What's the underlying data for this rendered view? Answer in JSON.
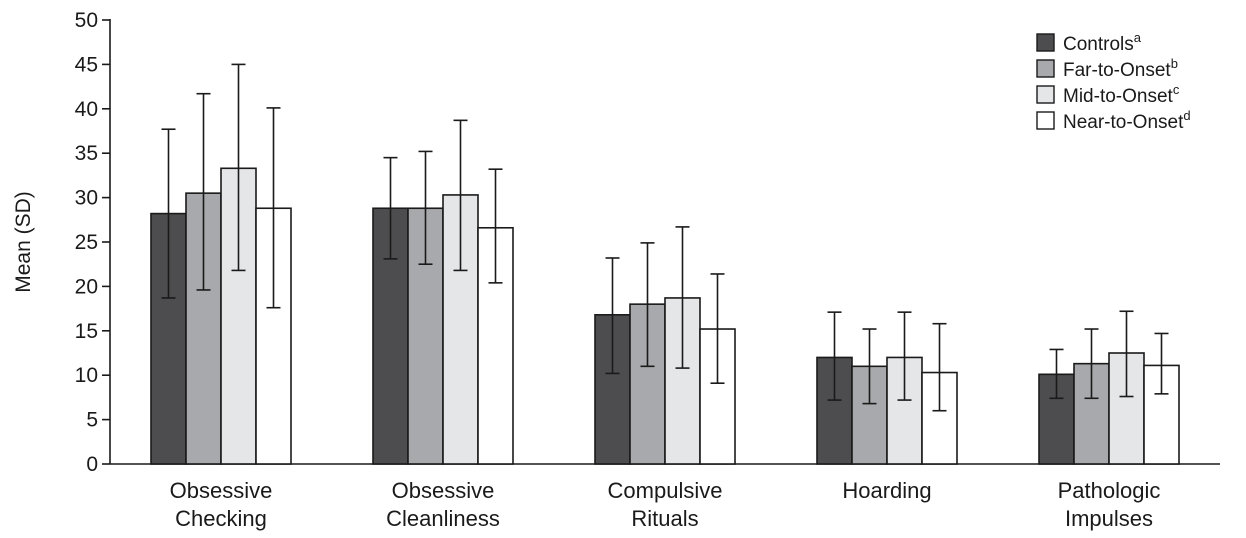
{
  "chart_data": {
    "type": "bar",
    "ylabel": "Mean (SD)",
    "xlabel": "",
    "ylim": [
      0,
      50
    ],
    "yticks": [
      0,
      5,
      10,
      15,
      20,
      25,
      30,
      35,
      40,
      45,
      50
    ],
    "grid": false,
    "legend_position": "top-right",
    "categories": [
      [
        "Obsessive",
        "Checking"
      ],
      [
        "Obsessive",
        "Cleanliness"
      ],
      [
        "Compulsive",
        "Rituals"
      ],
      [
        "Hoarding"
      ],
      [
        "Pathologic",
        "Impulses"
      ]
    ],
    "series": [
      {
        "name": "Controls",
        "sup": "a",
        "color": "#4d4d4f",
        "values": [
          28.2,
          28.8,
          16.8,
          12.0,
          10.1
        ],
        "err_low": [
          18.7,
          23.1,
          10.2,
          7.2,
          7.4
        ],
        "err_high": [
          37.7,
          34.5,
          23.2,
          17.1,
          12.9
        ]
      },
      {
        "name": "Far-to-Onset",
        "sup": "b",
        "color": "#a8a9ac",
        "values": [
          30.5,
          28.8,
          18.0,
          11.0,
          11.3
        ],
        "err_low": [
          19.6,
          22.5,
          11.0,
          6.8,
          7.4
        ],
        "err_high": [
          41.7,
          35.2,
          24.9,
          15.2,
          15.2
        ]
      },
      {
        "name": "Mid-to-Onset",
        "sup": "c",
        "color": "#e5e6e8",
        "values": [
          33.3,
          30.3,
          18.7,
          12.0,
          12.5
        ],
        "err_low": [
          21.8,
          21.8,
          10.8,
          7.2,
          7.6
        ],
        "err_high": [
          45.0,
          38.7,
          26.7,
          17.1,
          17.2
        ]
      },
      {
        "name": "Near-to-Onset",
        "sup": "d",
        "color": "#ffffff",
        "values": [
          28.8,
          26.6,
          15.2,
          10.3,
          11.1
        ],
        "err_low": [
          17.6,
          20.4,
          9.1,
          6.0,
          7.9
        ],
        "err_high": [
          40.1,
          33.2,
          21.4,
          15.8,
          14.7
        ]
      }
    ]
  }
}
